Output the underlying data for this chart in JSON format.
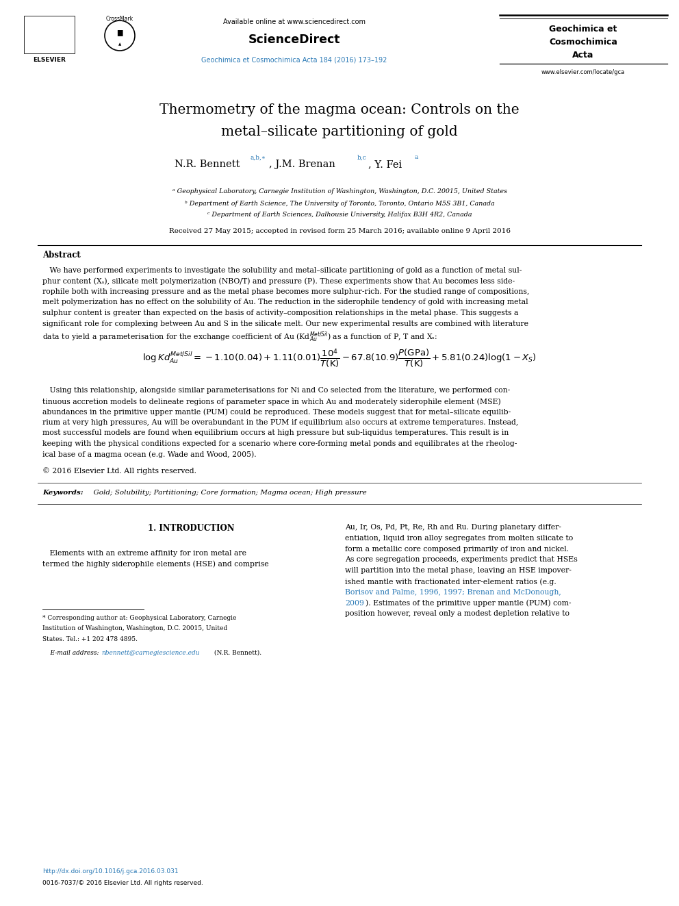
{
  "background_color": "#ffffff",
  "page_width": 9.92,
  "page_height": 13.23,
  "link_color": "#2878b5",
  "header": {
    "available_online": "Available online at www.sciencedirect.com",
    "sciencedirect": "ScienceDirect",
    "journal_ref_color": "#2878b5",
    "journal_ref": "Geochimica et Cosmochimica Acta 184 (2016) 173–192",
    "journal_name_line1": "Geochimica et",
    "journal_name_line2": "Cosmochimica",
    "journal_name_line3": "Acta",
    "website": "www.elsevier.com/locate/gca"
  },
  "title_line1": "Thermometry of the magma ocean: Controls on the",
  "title_line2": "metal–silicate partitioning of gold",
  "affil1": "ᵃ Geophysical Laboratory, Carnegie Institution of Washington, Washington, D.C. 20015, United States",
  "affil2": "ᵇ Department of Earth Science, The University of Toronto, Toronto, Ontario M5S 3B1, Canada",
  "affil3": "ᶜ Department of Earth Sciences, Dalhousie University, Halifax B3H 4R2, Canada",
  "received": "Received 27 May 2015; accepted in revised form 25 March 2016; available online 9 April 2016",
  "abstract_title": "Abstract",
  "copyright": "© 2016 Elsevier Ltd. All rights reserved.",
  "keywords_label": "Keywords:",
  "keywords_text": "  Gold; Solubility; Partitioning; Core formation; Magma ocean; High pressure",
  "intro_title": "1. INTRODUCTION",
  "footnote_line1": "* Corresponding author at: Geophysical Laboratory, Carnegie",
  "footnote_line2": "Institution of Washington, Washington, D.C. 20015, United",
  "footnote_line3": "States. Tel.: +1 202 478 4895.",
  "footnote_email_label": "    E-mail address: ",
  "footnote_email_link": "nbennett@carnegiescience.edu",
  "footnote_email_suffix": " (N.R. Bennett).",
  "doi": "http://dx.doi.org/10.1016/j.gca.2016.03.031",
  "issn": "0016-7037/© 2016 Elsevier Ltd. All rights reserved."
}
